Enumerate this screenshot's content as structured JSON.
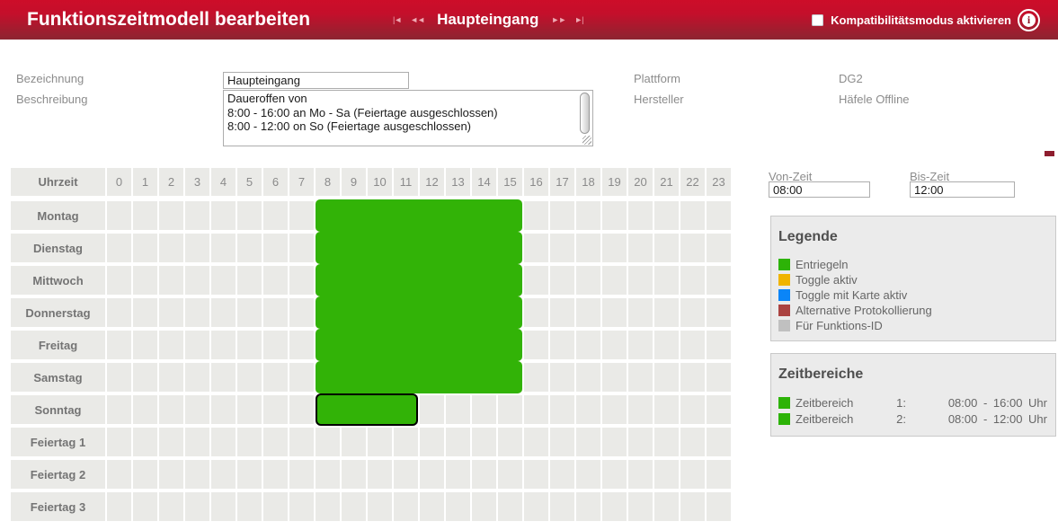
{
  "colors": {
    "header_top": "#cd0d29",
    "header_bottom": "#8c2531",
    "bar_green": "#32b307",
    "selected_border": "#000000",
    "marker_red": "#8e1d2e"
  },
  "header": {
    "title": "Funktionszeitmodell bearbeiten",
    "nav": {
      "first_icon": "|◄",
      "prev_icon": "◄◄",
      "current": "Haupteingang",
      "next_icon": "►►",
      "last_icon": "►|"
    },
    "compat_checkbox_label": "Kompatibilitätsmodus aktivieren",
    "info_icon_glyph": "i"
  },
  "form": {
    "bezeichnung_label": "Bezeichnung",
    "bezeichnung_value": "Haupteingang",
    "beschreibung_label": "Beschreibung",
    "beschreibung_value": "Daueroffen von\n8:00 - 16:00 an Mo - Sa (Feiertage ausgeschlossen)\n8:00 - 12:00 on So (Feiertage ausgeschlossen)",
    "plattform_label": "Plattform",
    "plattform_value": "DG2",
    "hersteller_label": "Hersteller",
    "hersteller_value": "Häfele Offline"
  },
  "times": {
    "von_label": "Von-Zeit",
    "von_value": "08:00",
    "bis_label": "Bis-Zeit",
    "bis_value": "12:00"
  },
  "grid": {
    "corner_label": "Uhrzeit",
    "hours": [
      "0",
      "1",
      "2",
      "3",
      "4",
      "5",
      "6",
      "7",
      "8",
      "9",
      "10",
      "11",
      "12",
      "13",
      "14",
      "15",
      "16",
      "17",
      "18",
      "19",
      "20",
      "21",
      "22",
      "23"
    ],
    "rows": [
      {
        "label": "Montag",
        "bars": [
          {
            "start": 8,
            "end": 16,
            "selected": false
          }
        ]
      },
      {
        "label": "Dienstag",
        "bars": [
          {
            "start": 8,
            "end": 16,
            "selected": false
          }
        ]
      },
      {
        "label": "Mittwoch",
        "bars": [
          {
            "start": 8,
            "end": 16,
            "selected": false
          }
        ]
      },
      {
        "label": "Donnerstag",
        "bars": [
          {
            "start": 8,
            "end": 16,
            "selected": false
          }
        ]
      },
      {
        "label": "Freitag",
        "bars": [
          {
            "start": 8,
            "end": 16,
            "selected": false
          }
        ]
      },
      {
        "label": "Samstag",
        "bars": [
          {
            "start": 8,
            "end": 16,
            "selected": false
          }
        ]
      },
      {
        "label": "Sonntag",
        "bars": [
          {
            "start": 8,
            "end": 12,
            "selected": true
          }
        ]
      },
      {
        "label": "Feiertag 1",
        "bars": []
      },
      {
        "label": "Feiertag 2",
        "bars": []
      },
      {
        "label": "Feiertag 3",
        "bars": []
      }
    ]
  },
  "legend": {
    "title": "Legende",
    "items": [
      {
        "color": "#2db307",
        "label": "Entriegeln"
      },
      {
        "color": "#f0b400",
        "label": "Toggle aktiv"
      },
      {
        "color": "#0a85f8",
        "label": "Toggle mit Karte aktiv"
      },
      {
        "color": "#ab4341",
        "label": "Alternative Protokollierung"
      },
      {
        "color": "#c0c0c0",
        "label": "Für Funktions-ID"
      }
    ]
  },
  "zeitbereiche": {
    "title": "Zeitbereiche",
    "items": [
      {
        "color": "#2db307",
        "label": "Zeitbereich",
        "index": "1:",
        "range": "08:00 - 16:00 Uhr"
      },
      {
        "color": "#2db307",
        "label": "Zeitbereich",
        "index": "2:",
        "range": "08:00 - 12:00 Uhr"
      }
    ]
  }
}
